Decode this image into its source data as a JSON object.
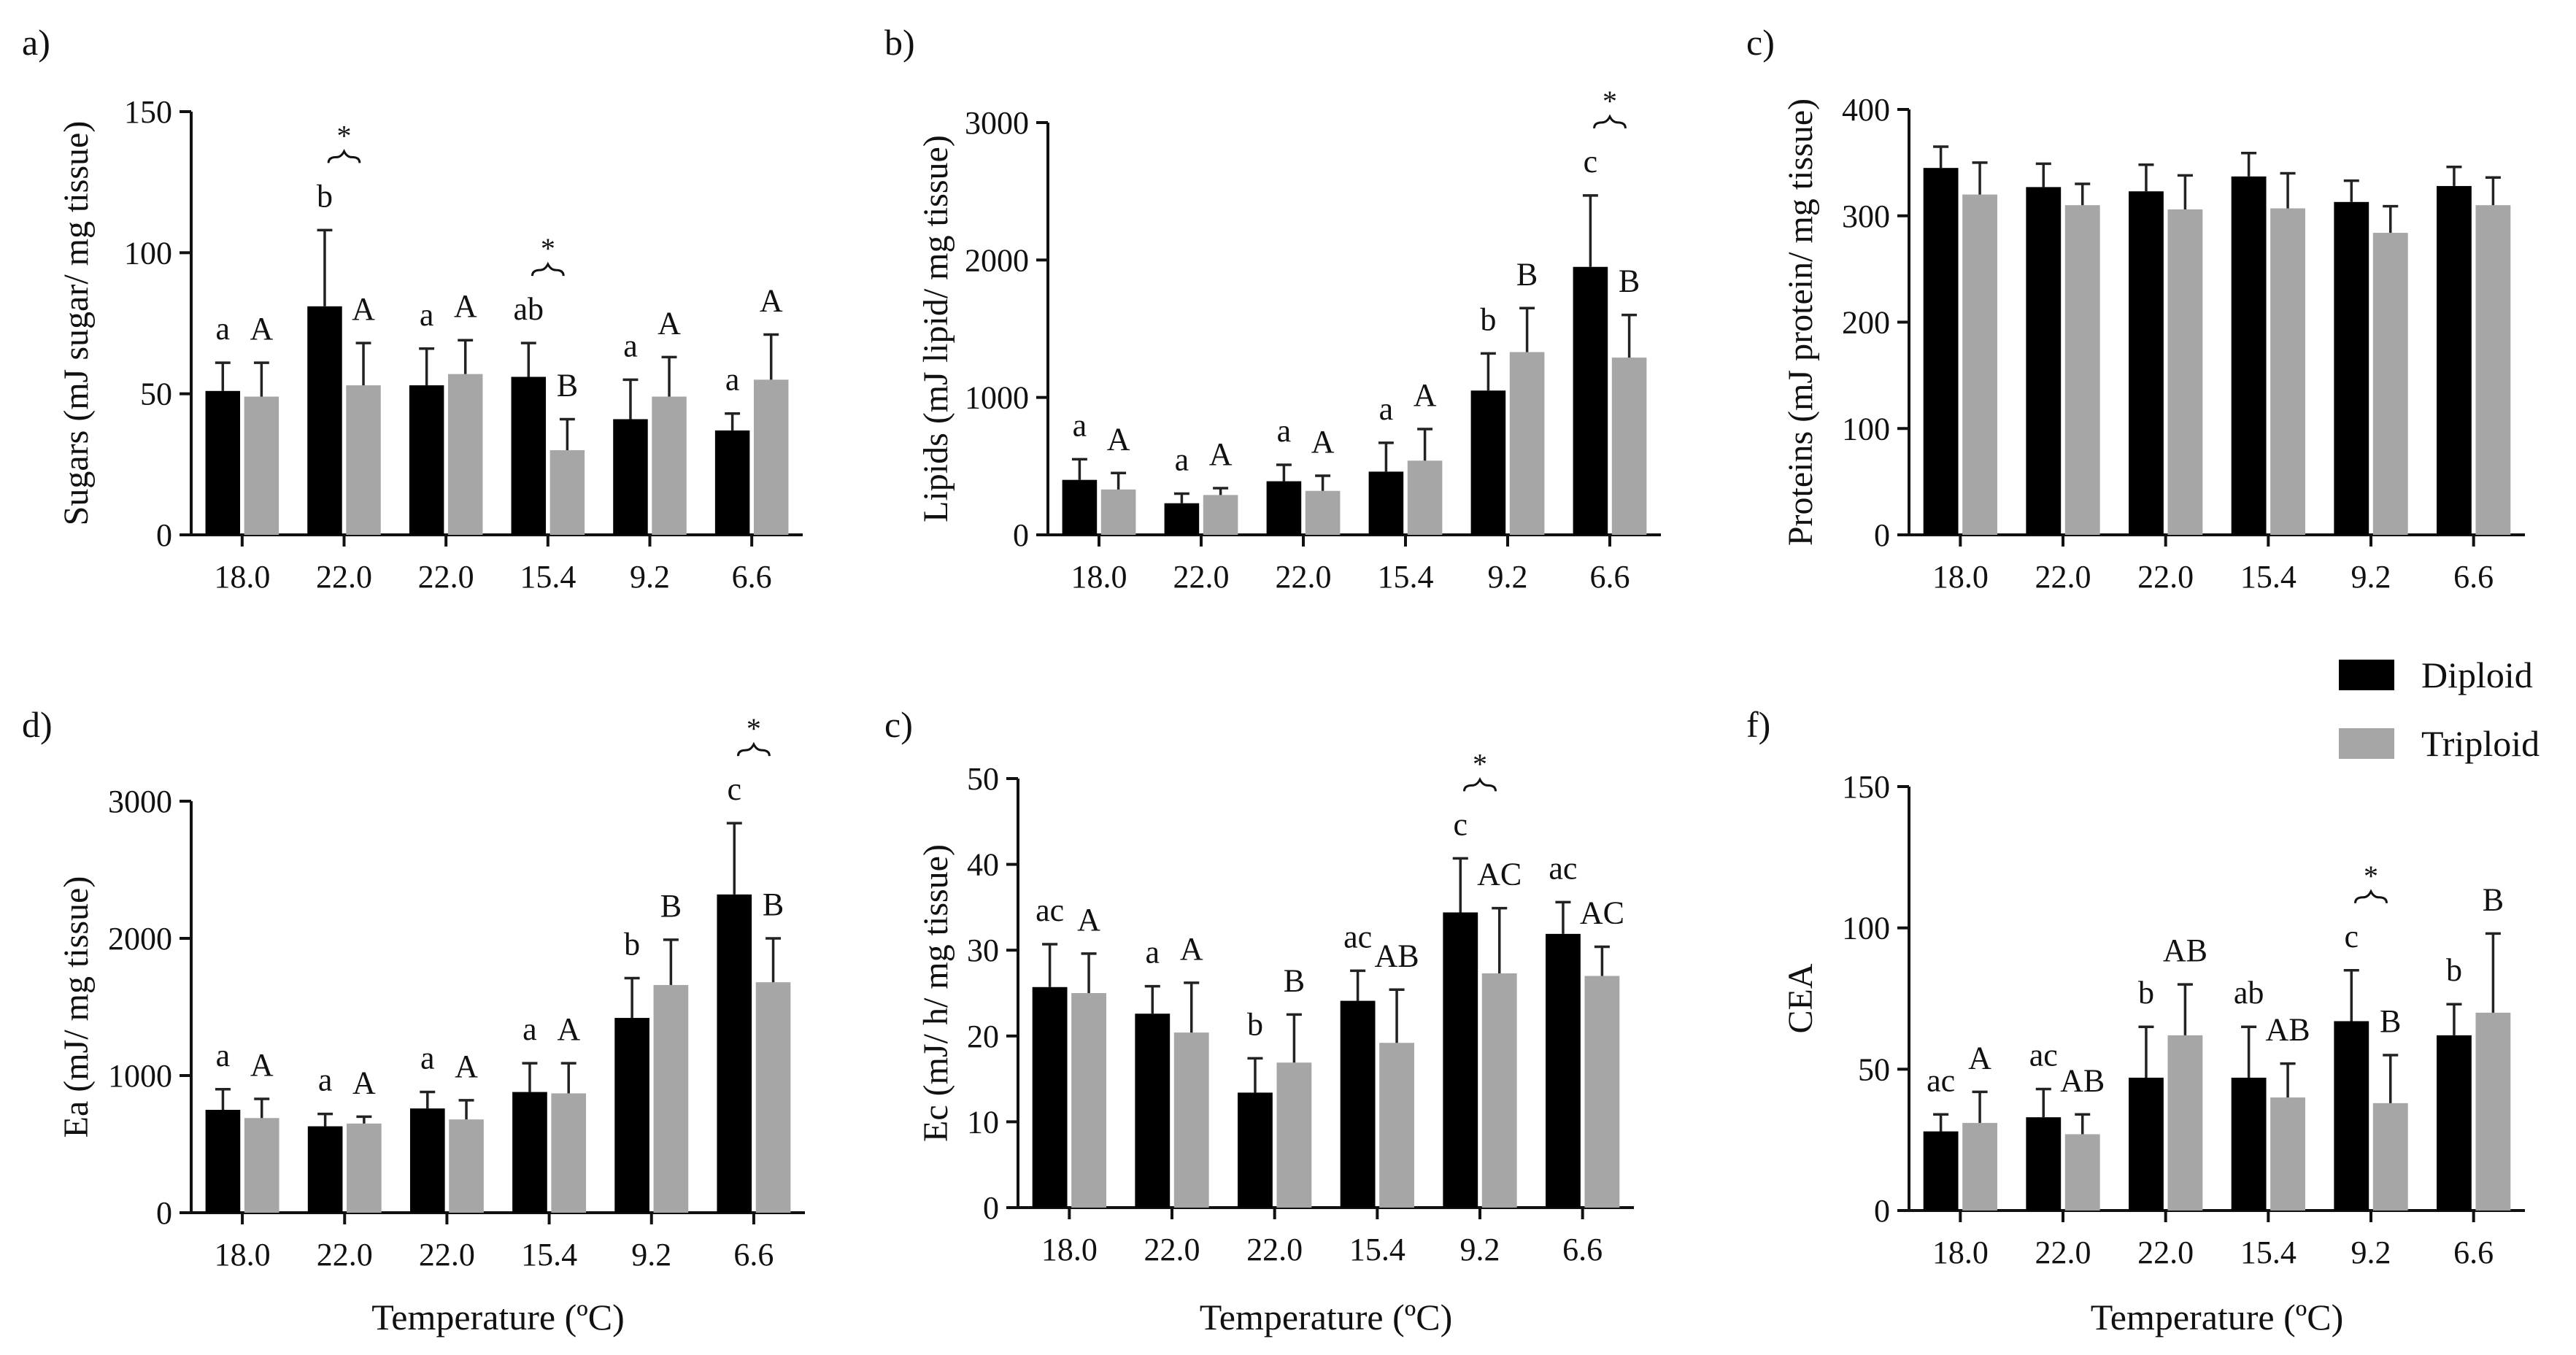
{
  "legend": {
    "items": [
      {
        "label": "Diploid",
        "color": "#000000"
      },
      {
        "label": "Triploid",
        "color": "#a6a6a6"
      }
    ],
    "position": "right, between rows"
  },
  "chart_data": [
    {
      "id": "a",
      "panel_label": "a)",
      "type": "bar",
      "ylabel": "Sugars (mJ sugar/ mg tissue)",
      "xlabel": "",
      "ylim": [
        0,
        150
      ],
      "yticks": [
        0,
        50,
        100,
        150
      ],
      "categories": [
        "18.0",
        "22.0",
        "22.0",
        "15.4",
        "9.2",
        "6.6"
      ],
      "series": [
        {
          "name": "Diploid",
          "color": "#000000",
          "values": [
            51,
            81,
            53,
            56,
            41,
            37
          ],
          "errors": [
            10,
            27,
            13,
            12,
            14,
            6
          ],
          "labels": [
            "a",
            "b",
            "a",
            "ab",
            "a",
            "a"
          ]
        },
        {
          "name": "Triploid",
          "color": "#a6a6a6",
          "values": [
            49,
            53,
            57,
            30,
            49,
            55
          ],
          "errors": [
            12,
            15,
            12,
            11,
            14,
            16
          ],
          "labels": [
            "A",
            "A",
            "A",
            "B",
            "A",
            "A"
          ]
        }
      ],
      "significance": [
        1,
        3
      ]
    },
    {
      "id": "b",
      "panel_label": "b)",
      "type": "bar",
      "ylabel": "Lipids (mJ lipid/ mg tissue)",
      "xlabel": "",
      "ylim": [
        0,
        3000
      ],
      "yticks": [
        0,
        1000,
        2000,
        3000
      ],
      "categories": [
        "18.0",
        "22.0",
        "22.0",
        "15.4",
        "9.2",
        "6.6"
      ],
      "series": [
        {
          "name": "Diploid",
          "color": "#000000",
          "values": [
            400,
            230,
            390,
            460,
            1050,
            1950
          ],
          "errors": [
            150,
            70,
            120,
            210,
            270,
            520
          ],
          "labels": [
            "a",
            "a",
            "a",
            "a",
            "b",
            "c"
          ]
        },
        {
          "name": "Triploid",
          "color": "#a6a6a6",
          "values": [
            330,
            290,
            320,
            540,
            1330,
            1290
          ],
          "errors": [
            120,
            50,
            110,
            230,
            320,
            310
          ],
          "labels": [
            "A",
            "A",
            "A",
            "A",
            "B",
            "B"
          ]
        }
      ],
      "significance": [
        5
      ]
    },
    {
      "id": "c1",
      "panel_label": "c)",
      "type": "bar",
      "ylabel": "Proteins (mJ protein/ mg tissue)",
      "xlabel": "",
      "ylim": [
        0,
        400
      ],
      "yticks": [
        0,
        100,
        200,
        300,
        400
      ],
      "categories": [
        "18.0",
        "22.0",
        "22.0",
        "15.4",
        "9.2",
        "6.6"
      ],
      "series": [
        {
          "name": "Diploid",
          "color": "#000000",
          "values": [
            345,
            327,
            323,
            337,
            313,
            328
          ],
          "errors": [
            20,
            22,
            25,
            22,
            20,
            18
          ],
          "labels": [
            "",
            "",
            "",
            "",
            "",
            ""
          ]
        },
        {
          "name": "Triploid",
          "color": "#a6a6a6",
          "values": [
            320,
            310,
            306,
            307,
            284,
            310
          ],
          "errors": [
            30,
            20,
            32,
            33,
            25,
            26
          ],
          "labels": [
            "",
            "",
            "",
            "",
            "",
            ""
          ]
        }
      ],
      "significance": []
    },
    {
      "id": "d",
      "panel_label": "d)",
      "type": "bar",
      "ylabel": "Ea (mJ/ mg tissue)",
      "xlabel": "Temperature (ºC)",
      "ylim": [
        0,
        3000
      ],
      "yticks": [
        0,
        1000,
        2000,
        3000
      ],
      "categories": [
        "18.0",
        "22.0",
        "22.0",
        "15.4",
        "9.2",
        "6.6"
      ],
      "series": [
        {
          "name": "Diploid",
          "color": "#000000",
          "values": [
            750,
            630,
            760,
            880,
            1420,
            2320
          ],
          "errors": [
            150,
            90,
            120,
            210,
            290,
            520
          ],
          "labels": [
            "a",
            "a",
            "a",
            "a",
            "b",
            "c"
          ]
        },
        {
          "name": "Triploid",
          "color": "#a6a6a6",
          "values": [
            690,
            650,
            680,
            870,
            1660,
            1680
          ],
          "errors": [
            140,
            50,
            140,
            220,
            330,
            320
          ],
          "labels": [
            "A",
            "A",
            "A",
            "A",
            "B",
            "B"
          ]
        }
      ],
      "significance": [
        5
      ]
    },
    {
      "id": "c2",
      "panel_label": "c)",
      "type": "bar",
      "ylabel": "Ec (mJ/ h/ mg tissue)",
      "xlabel": "Temperature (ºC)",
      "ylim": [
        0,
        50
      ],
      "yticks": [
        0,
        10,
        20,
        30,
        40,
        50
      ],
      "categories": [
        "18.0",
        "22.0",
        "22.0",
        "15.4",
        "9.2",
        "6.6"
      ],
      "series": [
        {
          "name": "Diploid",
          "color": "#000000",
          "values": [
            25.7,
            22.6,
            13.4,
            24.1,
            34.4,
            31.9
          ],
          "errors": [
            5,
            3.2,
            4,
            3.5,
            6.3,
            3.7
          ],
          "labels": [
            "ac",
            "a",
            "b",
            "ac",
            "c",
            "ac"
          ]
        },
        {
          "name": "Triploid",
          "color": "#a6a6a6",
          "values": [
            25.0,
            20.4,
            16.9,
            19.2,
            27.3,
            27.0
          ],
          "errors": [
            4.6,
            5.8,
            5.6,
            6.2,
            7.6,
            3.4
          ],
          "labels": [
            "A",
            "A",
            "B",
            "AB",
            "AC",
            "AC"
          ]
        }
      ],
      "significance": [
        4
      ]
    },
    {
      "id": "f",
      "panel_label": "f)",
      "type": "bar",
      "ylabel": "CEA",
      "xlabel": "Temperature (ºC)",
      "ylim": [
        0,
        150
      ],
      "yticks": [
        0,
        50,
        100,
        150
      ],
      "categories": [
        "18.0",
        "22.0",
        "22.0",
        "15.4",
        "9.2",
        "6.6"
      ],
      "series": [
        {
          "name": "Diploid",
          "color": "#000000",
          "values": [
            28,
            33,
            47,
            47,
            67,
            62
          ],
          "errors": [
            6,
            10,
            18,
            18,
            18,
            11
          ],
          "labels": [
            "ac",
            "ac",
            "b",
            "ab",
            "c",
            "b"
          ]
        },
        {
          "name": "Triploid",
          "color": "#a6a6a6",
          "values": [
            31,
            27,
            62,
            40,
            38,
            70
          ],
          "errors": [
            11,
            7,
            18,
            12,
            17,
            28
          ],
          "labels": [
            "A",
            "AB",
            "AB",
            "AB",
            "B",
            "B"
          ]
        }
      ],
      "significance": [
        4
      ]
    }
  ]
}
